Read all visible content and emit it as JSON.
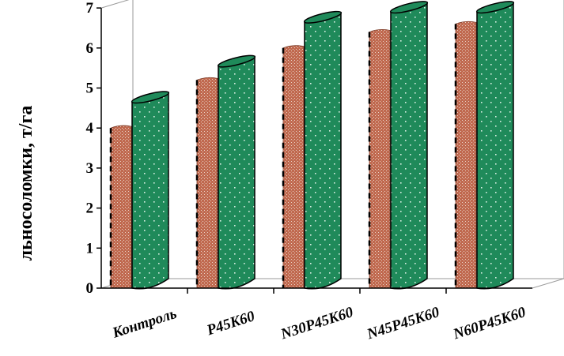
{
  "chart_data": {
    "type": "bar",
    "style": "3d-cylinder",
    "categories": [
      "Контроль",
      "P45K60",
      "N30P45K60",
      "N45P45K60",
      "N60P45K60"
    ],
    "series": [
      {
        "values": [
          4.0,
          5.2,
          6.0,
          6.4,
          6.6
        ]
      },
      {
        "values": [
          4.65,
          5.55,
          6.65,
          6.9,
          6.9
        ]
      }
    ],
    "colors": [
      "#c0694f",
      "#1f8a5a"
    ],
    "title": "",
    "xlabel": "",
    "ylabel": "льносоломки, т/га",
    "ylim": [
      0,
      7
    ],
    "yticks": [
      "0",
      "1",
      "2",
      "3",
      "4",
      "5",
      "6",
      "7"
    ],
    "grid": false,
    "legend": "none"
  }
}
